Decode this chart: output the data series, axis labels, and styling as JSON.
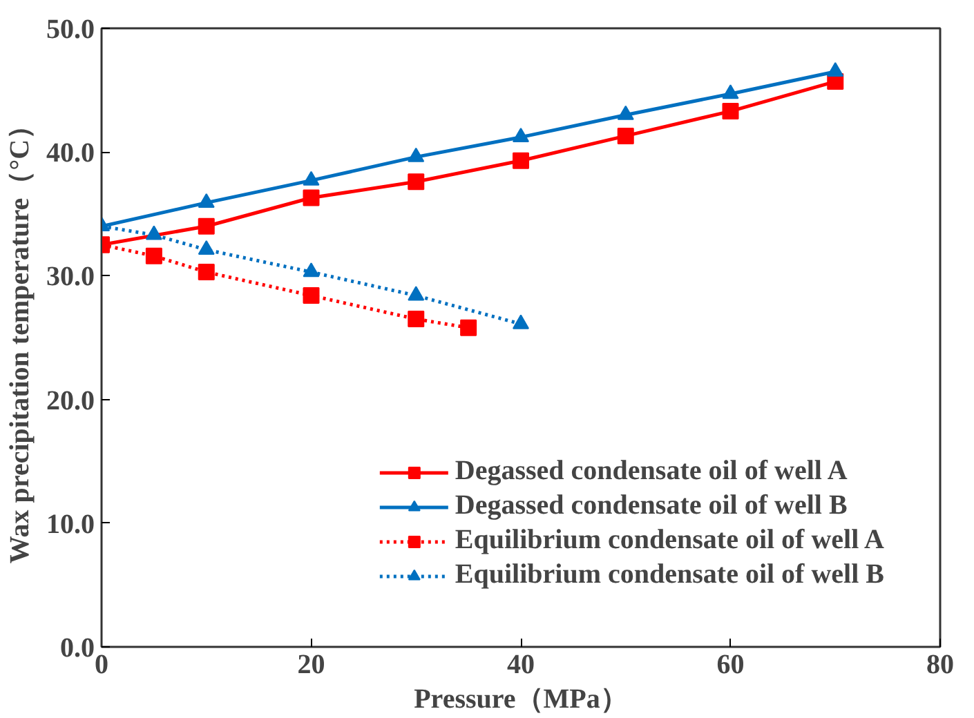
{
  "chart_data": {
    "type": "line",
    "xlabel": "Pressure（MPa）",
    "ylabel": "Wax precipitation temperature（°C）",
    "xlim": [
      0,
      80
    ],
    "xticks": [
      0,
      20,
      40,
      60,
      80
    ],
    "ylim": [
      0,
      50
    ],
    "yticks": [
      {
        "value": 0,
        "label": "0.0"
      },
      {
        "value": 10,
        "label": "10.0"
      },
      {
        "value": 20,
        "label": "20.0"
      },
      {
        "value": 30,
        "label": "30.0"
      },
      {
        "value": 40,
        "label": "40.0"
      },
      {
        "value": 50,
        "label": "50.0"
      }
    ],
    "grid": false,
    "legend": "bottom right",
    "series": [
      {
        "name": "Degassed condensate oil of well A",
        "color": "#ff0000",
        "marker": "square",
        "line_style": "solid",
        "x": [
          0,
          10,
          20,
          30,
          40,
          50,
          60,
          70
        ],
        "values": [
          32.5,
          34.0,
          36.3,
          37.6,
          39.3,
          41.3,
          43.3,
          45.7
        ]
      },
      {
        "name": "Degassed condensate oil of well B",
        "color": "#0070c0",
        "marker": "triangle",
        "line_style": "solid",
        "x": [
          0,
          10,
          20,
          30,
          40,
          50,
          60,
          70
        ],
        "values": [
          34.0,
          35.9,
          37.7,
          39.6,
          41.2,
          43.0,
          44.7,
          46.5
        ]
      },
      {
        "name": "Equilibrium condensate oil of well A",
        "color": "#ff0000",
        "marker": "square",
        "line_style": "dotted",
        "x": [
          0,
          5,
          10,
          20,
          30,
          35
        ],
        "values": [
          32.5,
          31.6,
          30.3,
          28.4,
          26.5,
          25.8
        ]
      },
      {
        "name": "Equilibrium condensate oil of well B",
        "color": "#0070c0",
        "marker": "triangle",
        "line_style": "dotted",
        "x": [
          0,
          5,
          10,
          20,
          30,
          40
        ],
        "values": [
          34.0,
          33.3,
          32.1,
          30.3,
          28.4,
          26.1
        ]
      }
    ]
  }
}
